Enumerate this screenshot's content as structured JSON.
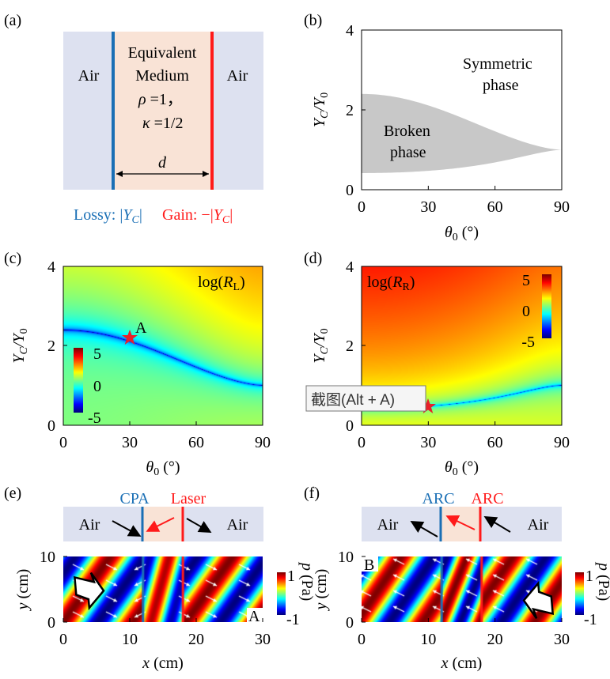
{
  "colors": {
    "lossy": "#1a6fb5",
    "gain": "#ff1a1a",
    "air_bg": "#dde1f0",
    "medium_bg": "#f9e3d6",
    "phase_fill": "#c8c8c8",
    "star": "#e8202a"
  },
  "panel_a": {
    "label": "(a)",
    "air_left": "Air",
    "air_right": "Air",
    "medium_line1": "Equivalent",
    "medium_line2": "Medium",
    "rho": "ρ",
    "rho_val": " =1，",
    "kappa": "κ",
    "kappa_val": " =1/2",
    "thickness": "d",
    "lossy_text": "Lossy: |",
    "gain_text": "Gain: −|",
    "Y": "Y",
    "C": "C",
    "bar": "|"
  },
  "chart_data": [
    {
      "panel": "(b)",
      "type": "area",
      "xlabel_main": "θ",
      "xlabel_sub": "0",
      "xlabel_unit": " (°)",
      "ylabel_main": "Y",
      "ylabel_sub": "C",
      "ylabel_sep": "/Y",
      "ylabel_sub2": "0",
      "xlim": [
        0,
        90
      ],
      "ylim": [
        0,
        4
      ],
      "xticks": [
        "0",
        "30",
        "60",
        "90"
      ],
      "yticks": [
        "0",
        "2",
        "4"
      ],
      "upper_bound": {
        "x": [
          0,
          15,
          30,
          45,
          60,
          75,
          90
        ],
        "y": [
          2.4,
          2.35,
          2.15,
          1.85,
          1.5,
          1.18,
          1.0
        ]
      },
      "lower_bound": {
        "x": [
          0,
          15,
          30,
          45,
          60,
          75,
          90
        ],
        "y": [
          0.42,
          0.43,
          0.47,
          0.54,
          0.67,
          0.85,
          1.0
        ]
      },
      "annotations": {
        "region_inside_1": "Broken",
        "region_inside_2": "phase",
        "region_outside_1": "Symmetric",
        "region_outside_2": "phase"
      }
    },
    {
      "panel": "(c)",
      "type": "heatmap",
      "title_pre": "log(",
      "title_main": "R",
      "title_sub": "L",
      "title_post": ")",
      "xlabel_main": "θ",
      "xlabel_sub": "0",
      "xlabel_unit": " (°)",
      "ylabel_main": "Y",
      "ylabel_sub": "C",
      "ylabel_sep": "/Y",
      "ylabel_sub2": "0",
      "xlim": [
        0,
        90
      ],
      "ylim": [
        0,
        4
      ],
      "xticks": [
        "0",
        "30",
        "60",
        "90"
      ],
      "yticks": [
        "0",
        "2",
        "4"
      ],
      "colorbar": {
        "range": [
          -5,
          5
        ],
        "ticks": [
          "5",
          "0",
          "-5"
        ],
        "colormap": "jet"
      },
      "minimum_curve": {
        "x": [
          0,
          15,
          30,
          45,
          60,
          75,
          90
        ],
        "y": [
          2.4,
          2.35,
          2.15,
          1.85,
          1.5,
          1.18,
          1.0
        ]
      },
      "marker": {
        "label": "A",
        "x": 30,
        "y": 2.2,
        "shape": "star"
      }
    },
    {
      "panel": "(d)",
      "type": "heatmap",
      "title_pre": "log(",
      "title_main": "R",
      "title_sub": "R",
      "title_post": ")",
      "xlabel_main": "θ",
      "xlabel_sub": "0",
      "xlabel_unit": " (°)",
      "ylabel_main": "Y",
      "ylabel_sub": "C",
      "ylabel_sep": "/Y",
      "ylabel_sub2": "0",
      "xlim": [
        0,
        90
      ],
      "ylim": [
        0,
        4
      ],
      "xticks": [
        "0",
        "30",
        "60",
        "90"
      ],
      "yticks": [
        "0",
        "2",
        "4"
      ],
      "colorbar": {
        "range": [
          -5,
          5
        ],
        "ticks": [
          "5",
          "0",
          "-5"
        ],
        "colormap": "jet"
      },
      "minimum_curve": {
        "x": [
          0,
          15,
          30,
          45,
          60,
          75,
          90
        ],
        "y": [
          0.42,
          0.43,
          0.47,
          0.54,
          0.67,
          0.85,
          1.0
        ]
      },
      "marker": {
        "x": 30,
        "y": 0.45,
        "shape": "star"
      }
    },
    {
      "panel": "(e)",
      "type": "heatmap",
      "xlabel_main": "x",
      "xlabel_unit": " (cm)",
      "ylabel_main": "y",
      "ylabel_unit": " (cm)",
      "xlim": [
        0,
        30
      ],
      "ylim": [
        0,
        10
      ],
      "xticks": [
        "0",
        "10",
        "20",
        "30"
      ],
      "yticks": [
        "0",
        "10"
      ],
      "colorbar": {
        "range": [
          -1,
          1
        ],
        "ticks": [
          "1",
          "-1"
        ],
        "label_main": "p",
        "label_unit": " (Pa)",
        "colormap": "jet"
      },
      "point_label": "A",
      "interfaces_x": [
        12,
        18
      ]
    },
    {
      "panel": "(f)",
      "type": "heatmap",
      "xlabel_main": "x",
      "xlabel_unit": " (cm)",
      "ylabel_main": "y",
      "ylabel_unit": " (cm)",
      "xlim": [
        0,
        30
      ],
      "ylim": [
        0,
        10
      ],
      "xticks": [
        "0",
        "10",
        "20",
        "30"
      ],
      "yticks": [
        "0",
        "10"
      ],
      "colorbar": {
        "range": [
          -1,
          1
        ],
        "ticks": [
          "1",
          "-1"
        ],
        "label_main": "p",
        "label_unit": " (Pa)",
        "colormap": "jet"
      },
      "point_label": "B",
      "interfaces_x": [
        12,
        18
      ]
    }
  ],
  "panel_labels": {
    "b": "(b)",
    "c": "(c)",
    "d": "(d)",
    "e": "(e)",
    "f": "(f)"
  },
  "panel_e": {
    "left_boundary": "CPA",
    "right_boundary": "Laser",
    "air_left": "Air",
    "air_right": "Air"
  },
  "panel_f": {
    "left_boundary": "ARC",
    "right_boundary": "ARC",
    "air_left": "Air",
    "air_right": "Air"
  },
  "tooltip": {
    "text": "截图(Alt + A)"
  }
}
